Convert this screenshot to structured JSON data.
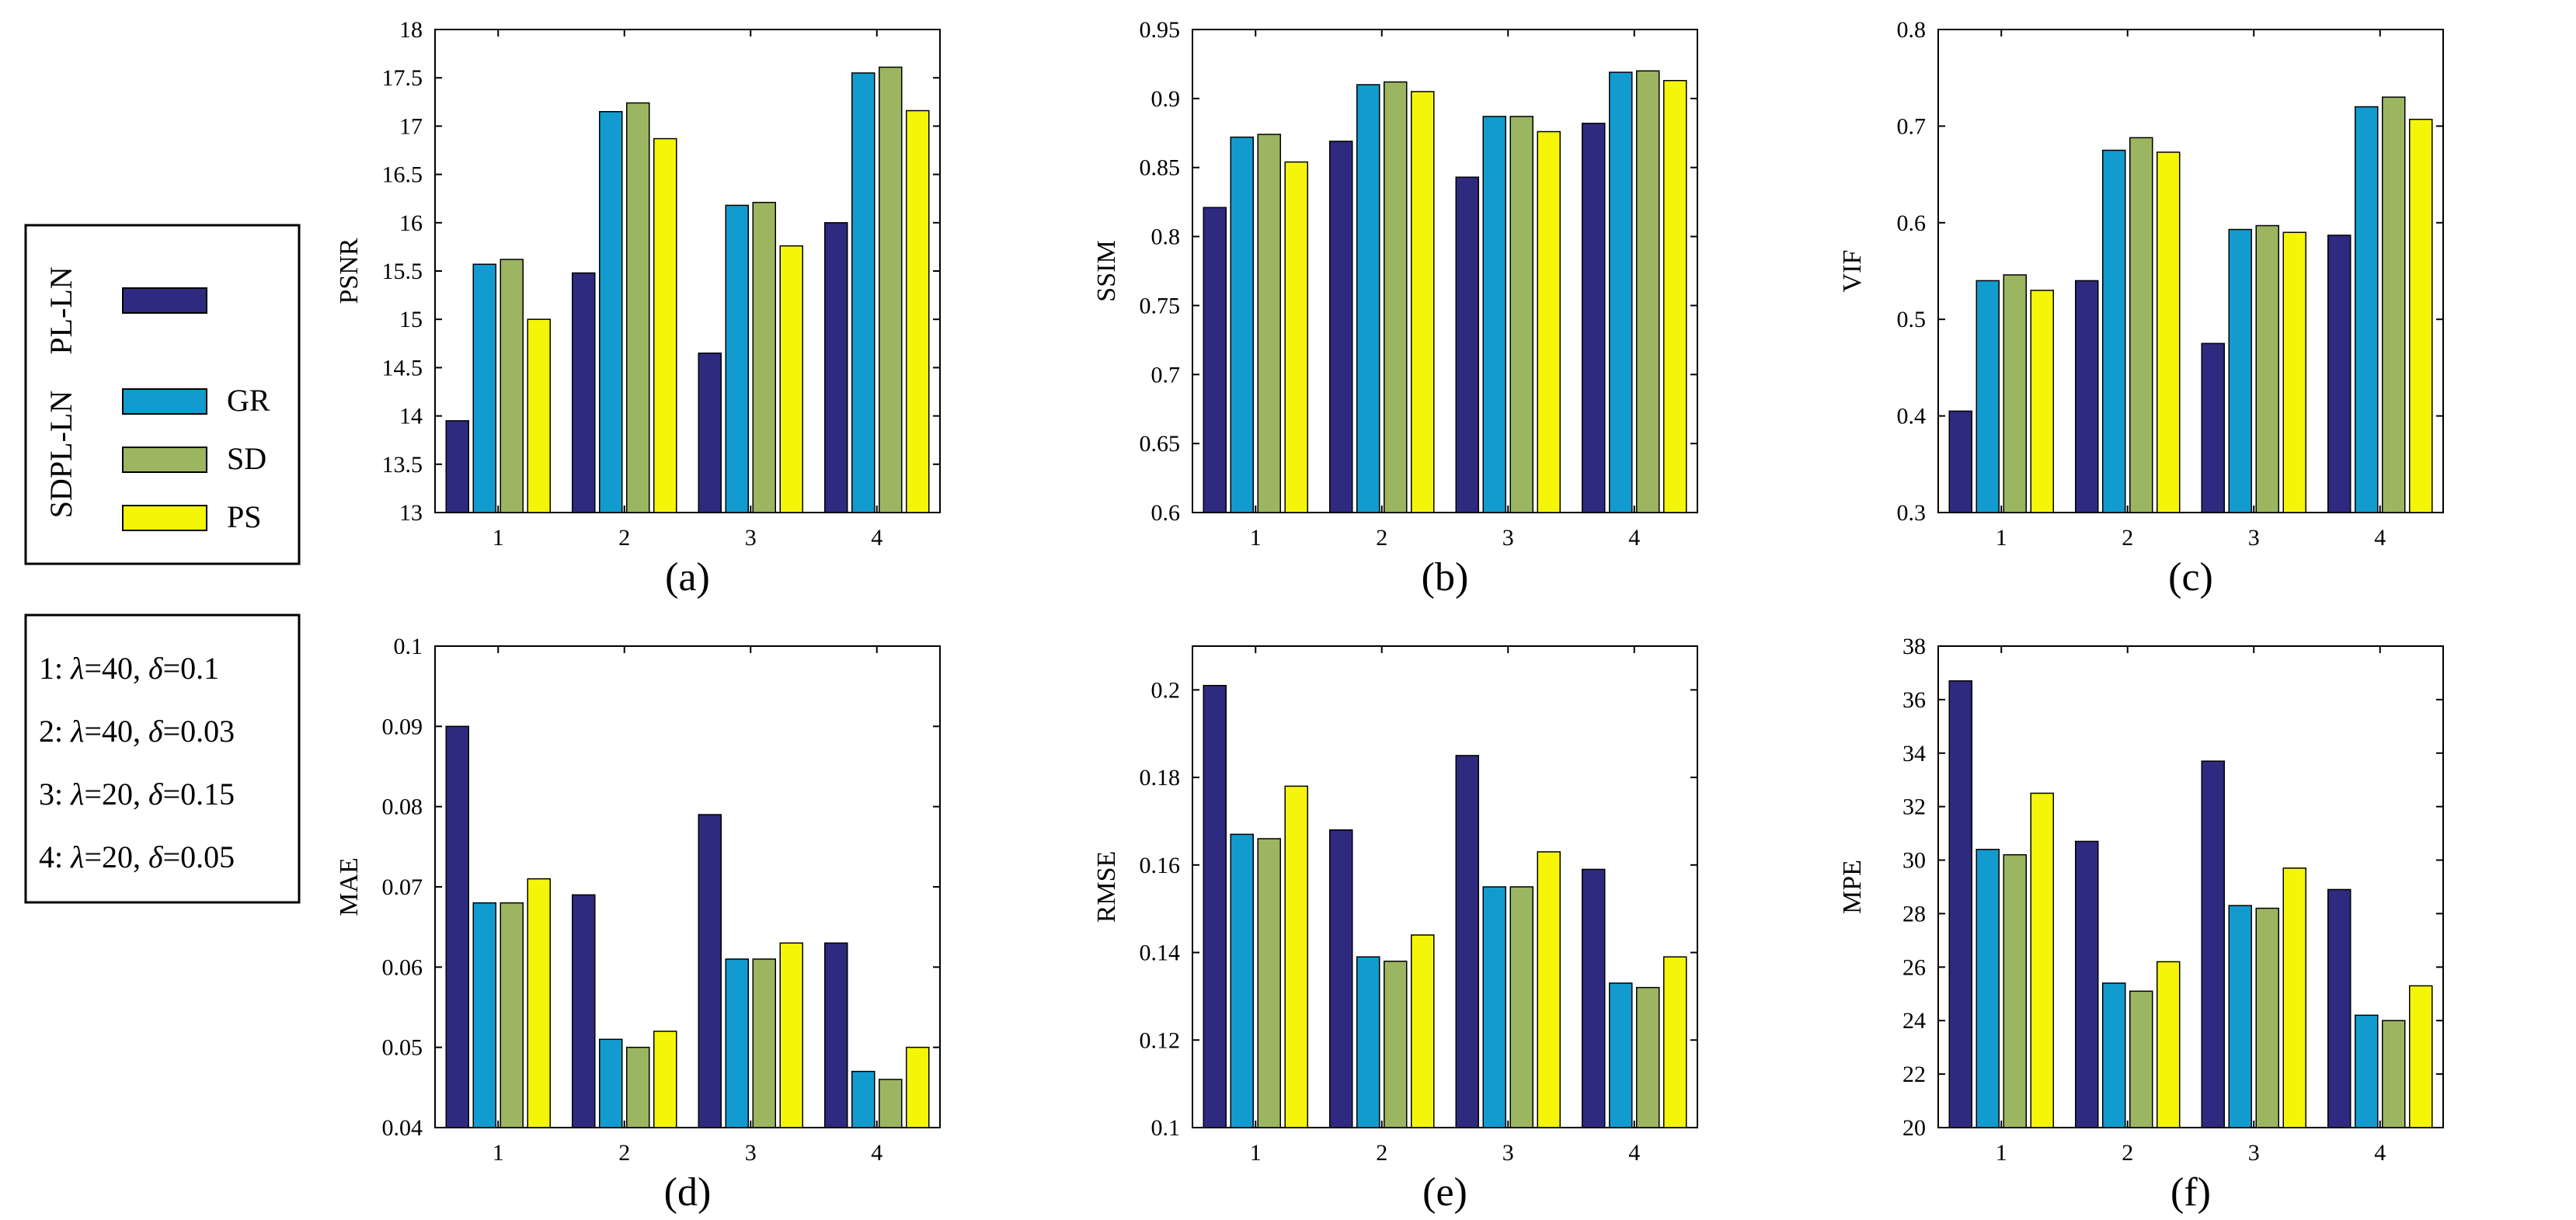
{
  "series_colors": [
    "#2e2a7f",
    "#129bcf",
    "#9bb560",
    "#f5f50a"
  ],
  "legend": {
    "rot_top": "PL-LN",
    "rot_bottom": "SDPL-LN",
    "entries": [
      "",
      "GR",
      "SD",
      "PS"
    ]
  },
  "params": [
    {
      "prefix": "1: ",
      "l": "λ",
      "lv": "=40, ",
      "d": "δ",
      "dv": "=0.1"
    },
    {
      "prefix": "2: ",
      "l": "λ",
      "lv": "=40, ",
      "d": "δ",
      "dv": "=0.03"
    },
    {
      "prefix": "3: ",
      "l": "λ",
      "lv": "=20, ",
      "d": "δ",
      "dv": "=0.15"
    },
    {
      "prefix": "4: ",
      "l": "λ",
      "lv": "=20, ",
      "d": "δ",
      "dv": "=0.05"
    }
  ],
  "chart_data": [
    {
      "type": "bar",
      "panel": "(a)",
      "ylabel": "PSNR",
      "ylim": [
        13,
        18
      ],
      "yticks": [
        13,
        13.5,
        14,
        14.5,
        15,
        15.5,
        16,
        16.5,
        17,
        17.5,
        18
      ],
      "ytick_labels": [
        "13",
        "13.5",
        "14",
        "14.5",
        "15",
        "15.5",
        "16",
        "16.5",
        "17",
        "17.5",
        "18"
      ],
      "categories": [
        "1",
        "2",
        "3",
        "4"
      ],
      "series": [
        {
          "values": [
            13.95,
            15.48,
            14.65,
            16.0
          ]
        },
        {
          "name": "GR",
          "values": [
            15.57,
            17.15,
            16.18,
            17.55
          ]
        },
        {
          "name": "SD",
          "values": [
            15.62,
            17.24,
            16.21,
            17.61
          ]
        },
        {
          "name": "PS",
          "values": [
            15.0,
            16.87,
            15.76,
            17.16
          ]
        }
      ]
    },
    {
      "type": "bar",
      "panel": "(b)",
      "ylabel": "SSIM",
      "ylim": [
        0.6,
        0.95
      ],
      "yticks": [
        0.6,
        0.65,
        0.7,
        0.75,
        0.8,
        0.85,
        0.9,
        0.95
      ],
      "ytick_labels": [
        "0.6",
        "0.65",
        "0.7",
        "0.75",
        "0.8",
        "0.85",
        "0.9",
        "0.95"
      ],
      "categories": [
        "1",
        "2",
        "3",
        "4"
      ],
      "series": [
        {
          "values": [
            0.821,
            0.869,
            0.843,
            0.882
          ]
        },
        {
          "name": "GR",
          "values": [
            0.872,
            0.91,
            0.887,
            0.919
          ]
        },
        {
          "name": "SD",
          "values": [
            0.874,
            0.912,
            0.887,
            0.92
          ]
        },
        {
          "name": "PS",
          "values": [
            0.854,
            0.905,
            0.876,
            0.913
          ]
        }
      ]
    },
    {
      "type": "bar",
      "panel": "(c)",
      "ylabel": "VIF",
      "ylim": [
        0.3,
        0.8
      ],
      "yticks": [
        0.3,
        0.4,
        0.5,
        0.6,
        0.7,
        0.8
      ],
      "ytick_labels": [
        "0.3",
        "0.4",
        "0.5",
        "0.6",
        "0.7",
        "0.8"
      ],
      "categories": [
        "1",
        "2",
        "3",
        "4"
      ],
      "series": [
        {
          "values": [
            0.405,
            0.54,
            0.475,
            0.587
          ]
        },
        {
          "name": "GR",
          "values": [
            0.54,
            0.675,
            0.593,
            0.72
          ]
        },
        {
          "name": "SD",
          "values": [
            0.546,
            0.688,
            0.597,
            0.73
          ]
        },
        {
          "name": "PS",
          "values": [
            0.53,
            0.673,
            0.59,
            0.707
          ]
        }
      ]
    },
    {
      "type": "bar",
      "panel": "(d)",
      "ylabel": "MAE",
      "ylim": [
        0.04,
        0.1
      ],
      "yticks": [
        0.04,
        0.05,
        0.06,
        0.07,
        0.08,
        0.09,
        0.1
      ],
      "ytick_labels": [
        "0.04",
        "0.05",
        "0.06",
        "0.07",
        "0.08",
        "0.09",
        "0.1"
      ],
      "categories": [
        "1",
        "2",
        "3",
        "4"
      ],
      "series": [
        {
          "values": [
            0.09,
            0.069,
            0.079,
            0.063
          ]
        },
        {
          "name": "GR",
          "values": [
            0.068,
            0.051,
            0.061,
            0.047
          ]
        },
        {
          "name": "SD",
          "values": [
            0.068,
            0.05,
            0.061,
            0.046
          ]
        },
        {
          "name": "PS",
          "values": [
            0.071,
            0.052,
            0.063,
            0.05
          ]
        }
      ]
    },
    {
      "type": "bar",
      "panel": "(e)",
      "ylabel": "RMSE",
      "ylim": [
        0.1,
        0.21
      ],
      "yticks": [
        0.1,
        0.12,
        0.14,
        0.16,
        0.18,
        0.2
      ],
      "ytick_labels": [
        "0.1",
        "0.12",
        "0.14",
        "0.16",
        "0.18",
        "0.2"
      ],
      "categories": [
        "1",
        "2",
        "3",
        "4"
      ],
      "series": [
        {
          "values": [
            0.201,
            0.168,
            0.185,
            0.159
          ]
        },
        {
          "name": "GR",
          "values": [
            0.167,
            0.139,
            0.155,
            0.133
          ]
        },
        {
          "name": "SD",
          "values": [
            0.166,
            0.138,
            0.155,
            0.132
          ]
        },
        {
          "name": "PS",
          "values": [
            0.178,
            0.144,
            0.163,
            0.139
          ]
        }
      ]
    },
    {
      "type": "bar",
      "panel": "(f)",
      "ylabel": "MPE",
      "ylim": [
        20,
        38
      ],
      "yticks": [
        20,
        22,
        24,
        26,
        28,
        30,
        32,
        34,
        36,
        38
      ],
      "ytick_labels": [
        "20",
        "22",
        "24",
        "26",
        "28",
        "30",
        "32",
        "34",
        "36",
        "38"
      ],
      "categories": [
        "1",
        "2",
        "3",
        "4"
      ],
      "series": [
        {
          "values": [
            36.7,
            30.7,
            33.7,
            28.9
          ]
        },
        {
          "name": "GR",
          "values": [
            30.4,
            25.4,
            28.3,
            24.2
          ]
        },
        {
          "name": "SD",
          "values": [
            30.2,
            25.1,
            28.2,
            24.0
          ]
        },
        {
          "name": "PS",
          "values": [
            32.5,
            26.2,
            29.7,
            25.3
          ]
        }
      ]
    }
  ]
}
